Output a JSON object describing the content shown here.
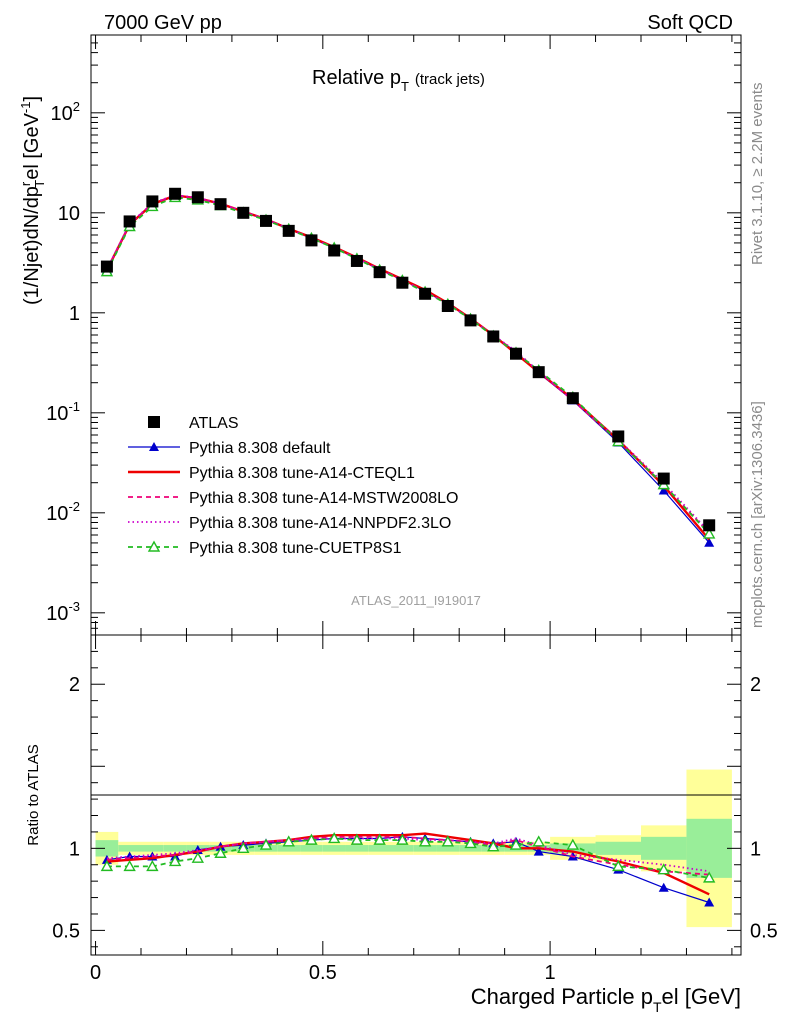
{
  "header": {
    "left": "7000 GeV pp",
    "right": "Soft QCD"
  },
  "side_labels": {
    "rivet": "Rivet 3.1.10, ≥ 2.2M events",
    "mcplots": "mcplots.cern.ch [arXiv:1306.3436]"
  },
  "chart_data": {
    "type": "line",
    "title_main": "Relative p",
    "title_sub": "T",
    "title_extra": "(track jets)",
    "analysis_id": "ATLAS_2011_I919017",
    "xlabel_main": "Charged Particle p",
    "xlabel_sub": "T",
    "xlabel_rest": "el [GeV]",
    "ylabel_main": "(1/Njet)dN/dp",
    "ylabel_sup": "r",
    "ylabel_sub": "T",
    "ylabel_rest": "el [GeV",
    "ylabel_exp": "-1",
    "ylabel_close": "]",
    "ratio_ylabel": "Ratio to ATLAS",
    "xlim": [
      -0.01,
      1.42
    ],
    "ylim_main": [
      0.0006,
      600
    ],
    "ylim_ratio": [
      0.35,
      2.3
    ],
    "x_ticks": [
      {
        "v": 0,
        "label": "0"
      },
      {
        "v": 0.5,
        "label": "0.5"
      },
      {
        "v": 1,
        "label": "1"
      }
    ],
    "y_ticks_main": [
      {
        "v": 0.001,
        "base": "10",
        "exp": "-3"
      },
      {
        "v": 0.01,
        "base": "10",
        "exp": "-2"
      },
      {
        "v": 0.1,
        "base": "10",
        "exp": "-1"
      },
      {
        "v": 1,
        "base": "1",
        "exp": ""
      },
      {
        "v": 10,
        "base": "10",
        "exp": ""
      },
      {
        "v": 100,
        "base": "10",
        "exp": "2"
      }
    ],
    "y_ticks_ratio": [
      {
        "v": 0.5,
        "label": "0.5"
      },
      {
        "v": 1,
        "label": "1"
      },
      {
        "v": 2,
        "label": "2"
      }
    ],
    "x": [
      0.025,
      0.075,
      0.125,
      0.175,
      0.225,
      0.275,
      0.325,
      0.375,
      0.425,
      0.475,
      0.525,
      0.575,
      0.625,
      0.675,
      0.725,
      0.775,
      0.825,
      0.875,
      0.925,
      0.975,
      1.05,
      1.15,
      1.25,
      1.35
    ],
    "bin_edges": [
      0,
      0.05,
      0.1,
      0.15,
      0.2,
      0.25,
      0.3,
      0.35,
      0.4,
      0.45,
      0.5,
      0.55,
      0.6,
      0.65,
      0.7,
      0.75,
      0.8,
      0.85,
      0.9,
      0.95,
      1.0,
      1.1,
      1.2,
      1.3,
      1.4
    ],
    "atlas_values": [
      2.9,
      8.2,
      13.0,
      15.5,
      14.3,
      12.2,
      10.0,
      8.3,
      6.6,
      5.3,
      4.2,
      3.3,
      2.55,
      2.0,
      1.55,
      1.17,
      0.84,
      0.58,
      0.39,
      0.255,
      0.14,
      0.058,
      0.022,
      0.0075
    ],
    "band_inner": [
      0.05,
      0.02,
      0.02,
      0.02,
      0.02,
      0.02,
      0.02,
      0.02,
      0.02,
      0.02,
      0.02,
      0.02,
      0.02,
      0.02,
      0.02,
      0.02,
      0.02,
      0.02,
      0.02,
      0.02,
      0.03,
      0.04,
      0.07,
      0.18
    ],
    "band_outer": [
      0.1,
      0.04,
      0.04,
      0.04,
      0.04,
      0.04,
      0.04,
      0.04,
      0.04,
      0.04,
      0.04,
      0.04,
      0.04,
      0.04,
      0.04,
      0.04,
      0.04,
      0.04,
      0.04,
      0.04,
      0.07,
      0.08,
      0.14,
      0.48
    ],
    "ratio_reference": 1,
    "legend_position": "center-left",
    "series": [
      {
        "name": "ATLAS",
        "color": "#000000",
        "style": "data",
        "marker": "square"
      },
      {
        "name": "Pythia 8.308 default",
        "color": "#0000cc",
        "style": "solid-thin",
        "marker": "triangle-filled",
        "ratio": [
          0.93,
          0.95,
          0.95,
          0.95,
          0.99,
          1.01,
          1.02,
          1.03,
          1.04,
          1.05,
          1.06,
          1.06,
          1.06,
          1.07,
          1.06,
          1.05,
          1.04,
          1.03,
          1.04,
          0.98,
          0.95,
          0.87,
          0.76,
          0.67
        ]
      },
      {
        "name": "Pythia 8.308 tune-A14-CTEQL1",
        "color": "#ee0000",
        "style": "solid-thick",
        "marker": "none",
        "ratio": [
          0.92,
          0.93,
          0.94,
          0.96,
          0.98,
          1.01,
          1.03,
          1.04,
          1.05,
          1.07,
          1.08,
          1.08,
          1.08,
          1.08,
          1.09,
          1.07,
          1.05,
          1.03,
          1.0,
          1.0,
          0.98,
          0.92,
          0.85,
          0.72
        ]
      },
      {
        "name": "Pythia 8.308 tune-A14-MSTW2008LO",
        "color": "#ee0077",
        "style": "dashed",
        "marker": "none",
        "ratio": [
          0.93,
          0.94,
          0.95,
          0.96,
          0.98,
          1.01,
          1.03,
          1.04,
          1.05,
          1.06,
          1.07,
          1.07,
          1.07,
          1.07,
          1.06,
          1.05,
          1.04,
          1.02,
          1.05,
          1.01,
          0.95,
          0.9,
          0.86,
          0.84
        ]
      },
      {
        "name": "Pythia 8.308 tune-A14-NNPDF2.3LO",
        "color": "#cc00cc",
        "style": "dotted",
        "marker": "none",
        "ratio": [
          0.94,
          0.95,
          0.96,
          0.97,
          0.99,
          1.01,
          1.03,
          1.04,
          1.05,
          1.06,
          1.06,
          1.06,
          1.06,
          1.06,
          1.05,
          1.05,
          1.04,
          1.03,
          1.06,
          1.02,
          0.96,
          0.93,
          0.9,
          0.86
        ]
      },
      {
        "name": "Pythia 8.308 tune-CUETP8S1",
        "color": "#22bb22",
        "style": "dashed",
        "marker": "triangle-open",
        "ratio": [
          0.89,
          0.89,
          0.89,
          0.92,
          0.94,
          0.97,
          1.0,
          1.02,
          1.04,
          1.05,
          1.06,
          1.05,
          1.05,
          1.05,
          1.04,
          1.04,
          1.03,
          1.01,
          1.02,
          1.04,
          1.02,
          0.89,
          0.87,
          0.82
        ]
      }
    ]
  }
}
